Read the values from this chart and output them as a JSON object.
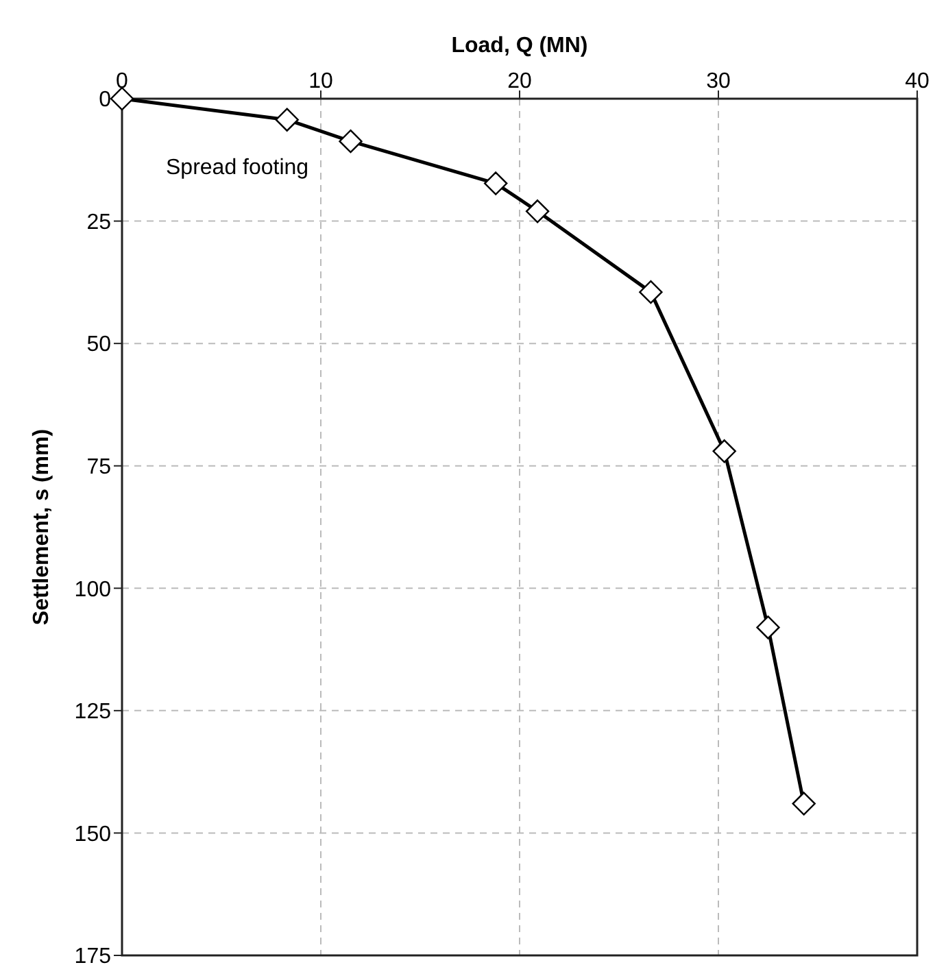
{
  "chart_data": {
    "type": "line",
    "xlabel": "Load, Q (MN)",
    "ylabel": "Settlement, s (mm)",
    "x": [
      0,
      8.3,
      11.5,
      18.8,
      20.9,
      26.6,
      30.3,
      32.5,
      34.3
    ],
    "series": [
      {
        "color": "#000000",
        "values": [
          0,
          4.3,
          8.7,
          17.3,
          23,
          39.5,
          72,
          108,
          144
        ]
      }
    ],
    "xlim": [
      0,
      40
    ],
    "xticks": [
      0,
      10,
      20,
      30,
      40
    ],
    "ylim": [
      175,
      0
    ],
    "yticks": [
      0,
      25,
      50,
      75,
      100,
      125,
      150,
      175
    ],
    "grid": true,
    "marker": "diamond",
    "line_style": "solid",
    "annotations": [
      "Spread footing"
    ]
  }
}
